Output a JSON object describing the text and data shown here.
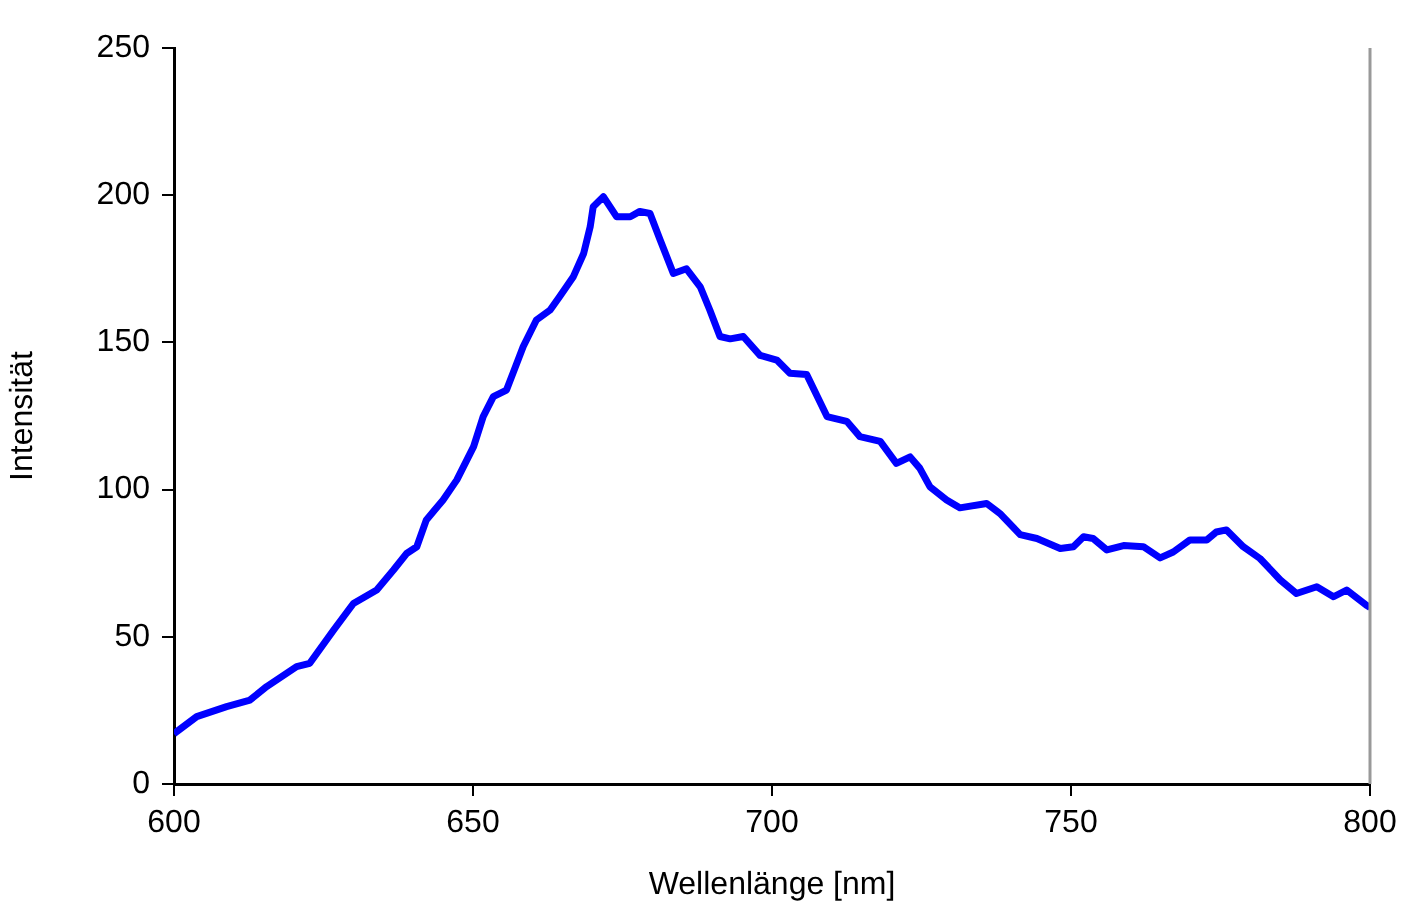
{
  "chart_data": {
    "type": "line",
    "xlabel": "Wellenlänge [nm]",
    "ylabel": "Intensität",
    "xlim": [
      600,
      800
    ],
    "xticks": [
      600,
      650,
      700,
      750,
      800
    ],
    "ylim": [
      0,
      250
    ],
    "yticks": [
      0,
      50,
      100,
      150,
      200,
      250
    ],
    "grid": false,
    "legend": false,
    "marker": "none",
    "line_style": "solid",
    "series": [
      {
        "color": "#0000ff",
        "x": [
          600,
          600.4,
          603.8,
          608.8,
          612.7,
          615.5,
          620.5,
          622.7,
          626.7,
          630,
          633.9,
          636.7,
          638.9,
          640.6,
          642.2,
          645,
          647.3,
          650.1,
          651.7,
          653.4,
          655.6,
          658.4,
          660.6,
          662.9,
          664.5,
          666.8,
          668.5,
          669.6,
          670.1,
          671.8,
          674,
          676.3,
          677.9,
          679.6,
          681.3,
          683.5,
          685.7,
          688,
          689.6,
          691.3,
          693,
          695.2,
          698,
          700.8,
          703,
          705.8,
          709.2,
          712.5,
          714.7,
          718.1,
          720.8,
          723.1,
          724.7,
          726.4,
          729.2,
          731.4,
          735.9,
          738.1,
          741.5,
          744.3,
          748.2,
          750.4,
          752.1,
          753.7,
          756,
          758.8,
          762.1,
          764.9,
          767.1,
          769.9,
          772.7,
          774.3,
          776,
          778.8,
          781.6,
          785,
          787.7,
          791.1,
          793.9,
          796.1,
          799.4,
          800
        ],
        "values": [
          17,
          17.7,
          22.9,
          26.3,
          28.5,
          33.1,
          39.9,
          41,
          52.3,
          61.3,
          65.9,
          72.7,
          78.3,
          80.6,
          89.7,
          96.5,
          103.3,
          114.6,
          124.8,
          131.6,
          133.8,
          148.6,
          157.6,
          161,
          165.6,
          172.4,
          180.2,
          189.3,
          196.1,
          199.5,
          192.7,
          192.7,
          194.5,
          193.8,
          184.8,
          173.4,
          175,
          168.9,
          161,
          152,
          151.2,
          152,
          145.6,
          144,
          139.5,
          139.1,
          124.8,
          123.2,
          118,
          116.4,
          108.9,
          111.1,
          107.3,
          101,
          96.5,
          93.8,
          95.3,
          91.9,
          84.7,
          83.4,
          80,
          80.6,
          84,
          83.4,
          79.5,
          81,
          80.6,
          76.8,
          78.8,
          82.9,
          82.9,
          85.6,
          86.3,
          80.6,
          76.6,
          69.3,
          64.7,
          67,
          63.6,
          65.9,
          60.7,
          60
        ]
      }
    ]
  }
}
